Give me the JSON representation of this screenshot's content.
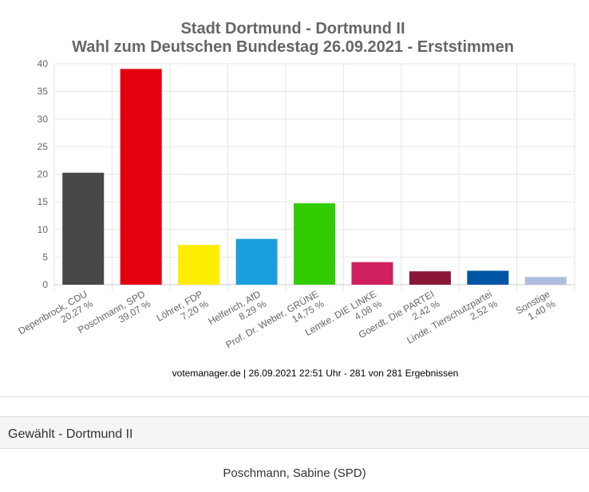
{
  "chart_data": {
    "type": "bar",
    "title": "Stadt Dortmund - Dortmund II",
    "subtitle": "Wahl zum Deutschen Bundestag 26.09.2021  - Erststimmen",
    "categories": [
      "Depenbrock, CDU",
      "Poschmann, SPD",
      "Löhrer, FDP",
      "Helferich, AfD",
      "Prof. Dr. Weber, GRÜNE",
      "Lemke, DIE LINKE",
      "Goerdt, Die PARTEI",
      "Linde, Tierschutzpartei",
      "Sonstige"
    ],
    "values": [
      20.27,
      39.07,
      7.2,
      8.29,
      14.75,
      4.08,
      2.42,
      2.52,
      1.4
    ],
    "value_labels": [
      "20,27 %",
      "39,07 %",
      "7,20 %",
      "8,29 %",
      "14,75 %",
      "4,08 %",
      "2,42 %",
      "2,52 %",
      "1,40 %"
    ],
    "colors": [
      "#474747",
      "#e3000f",
      "#ffed00",
      "#1a9fdd",
      "#32cd00",
      "#d1205f",
      "#8b1538",
      "#0055a4",
      "#afbee0"
    ],
    "ylim": [
      0,
      40
    ],
    "yticks": [
      0,
      5,
      10,
      15,
      20,
      25,
      30,
      35,
      40
    ],
    "grid": true,
    "xlabel": "",
    "ylabel": ""
  },
  "source": "votemanager.de | 26.09.2021 22:51 Uhr - 281 von 281 Ergebnissen",
  "panel": {
    "title": "Gewählt - Dortmund II",
    "elected": "Poschmann, Sabine (SPD)"
  }
}
